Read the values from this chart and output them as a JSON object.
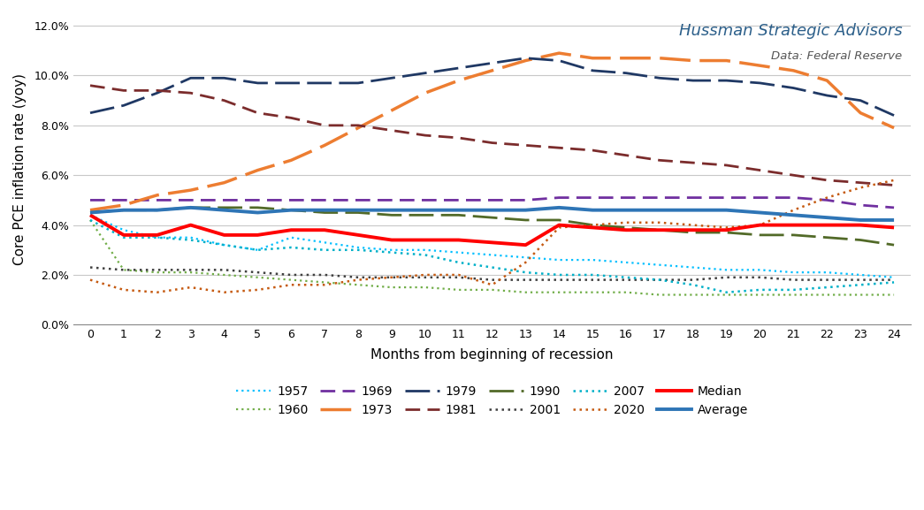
{
  "xlabel": "Months from beginning of recession",
  "ylabel": "Core PCE inflation rate (yoy)",
  "watermark_line1": "Hussman Strategic Advisors",
  "watermark_line2": "Data: Federal Reserve",
  "xlim": [
    -0.5,
    24.5
  ],
  "ylim": [
    0.0,
    0.125
  ],
  "yticks": [
    0.0,
    0.02,
    0.04,
    0.06,
    0.08,
    0.1,
    0.12
  ],
  "ytick_labels": [
    "0.0%",
    "2.0%",
    "4.0%",
    "6.0%",
    "8.0%",
    "10.0%",
    "12.0%"
  ],
  "series": {
    "1957": {
      "values": [
        0.044,
        0.038,
        0.035,
        0.035,
        0.032,
        0.03,
        0.035,
        0.033,
        0.031,
        0.03,
        0.03,
        0.029,
        0.028,
        0.027,
        0.026,
        0.026,
        0.025,
        0.024,
        0.023,
        0.022,
        0.022,
        0.021,
        0.021,
        0.02,
        0.019
      ],
      "color": "#00bfff",
      "ls_type": "dotted",
      "linewidth": 1.6
    },
    "1960": {
      "values": [
        0.042,
        0.022,
        0.021,
        0.021,
        0.02,
        0.019,
        0.018,
        0.017,
        0.016,
        0.015,
        0.015,
        0.014,
        0.014,
        0.013,
        0.013,
        0.013,
        0.013,
        0.012,
        0.012,
        0.012,
        0.012,
        0.012,
        0.012,
        0.012,
        0.012
      ],
      "color": "#70ad47",
      "ls_type": "dotted",
      "linewidth": 1.6
    },
    "1969": {
      "values": [
        0.05,
        0.05,
        0.05,
        0.05,
        0.05,
        0.05,
        0.05,
        0.05,
        0.05,
        0.05,
        0.05,
        0.05,
        0.05,
        0.05,
        0.051,
        0.051,
        0.051,
        0.051,
        0.051,
        0.051,
        0.051,
        0.051,
        0.05,
        0.048,
        0.047
      ],
      "color": "#7030a0",
      "ls_type": "dashed_short",
      "linewidth": 2.0
    },
    "1973": {
      "values": [
        0.046,
        0.048,
        0.052,
        0.054,
        0.057,
        0.062,
        0.066,
        0.072,
        0.079,
        0.086,
        0.093,
        0.098,
        0.102,
        0.106,
        0.109,
        0.107,
        0.107,
        0.107,
        0.106,
        0.106,
        0.104,
        0.102,
        0.098,
        0.085,
        0.079
      ],
      "color": "#ed7d31",
      "ls_type": "dashed_long",
      "linewidth": 2.5
    },
    "1979": {
      "values": [
        0.085,
        0.088,
        0.093,
        0.099,
        0.099,
        0.097,
        0.097,
        0.097,
        0.097,
        0.099,
        0.101,
        0.103,
        0.105,
        0.107,
        0.106,
        0.102,
        0.101,
        0.099,
        0.098,
        0.098,
        0.097,
        0.095,
        0.092,
        0.09,
        0.084
      ],
      "color": "#1f3864",
      "ls_type": "dashed_long",
      "linewidth": 2.0
    },
    "1981": {
      "values": [
        0.096,
        0.094,
        0.094,
        0.093,
        0.09,
        0.085,
        0.083,
        0.08,
        0.08,
        0.078,
        0.076,
        0.075,
        0.073,
        0.072,
        0.071,
        0.07,
        0.068,
        0.066,
        0.065,
        0.064,
        0.062,
        0.06,
        0.058,
        0.057,
        0.056
      ],
      "color": "#7b2c2c",
      "ls_type": "dashed_short",
      "linewidth": 2.0
    },
    "1990": {
      "values": [
        0.045,
        0.046,
        0.046,
        0.047,
        0.047,
        0.047,
        0.046,
        0.045,
        0.045,
        0.044,
        0.044,
        0.044,
        0.043,
        0.042,
        0.042,
        0.04,
        0.039,
        0.038,
        0.037,
        0.037,
        0.036,
        0.036,
        0.035,
        0.034,
        0.032
      ],
      "color": "#526a28",
      "ls_type": "dashed_long",
      "linewidth": 2.0
    },
    "2001": {
      "values": [
        0.023,
        0.022,
        0.022,
        0.022,
        0.022,
        0.021,
        0.02,
        0.02,
        0.019,
        0.019,
        0.019,
        0.019,
        0.018,
        0.018,
        0.018,
        0.018,
        0.018,
        0.018,
        0.018,
        0.019,
        0.019,
        0.018,
        0.018,
        0.018,
        0.018
      ],
      "color": "#404040",
      "ls_type": "dotted",
      "linewidth": 1.8
    },
    "2007": {
      "values": [
        0.042,
        0.035,
        0.035,
        0.034,
        0.032,
        0.03,
        0.031,
        0.03,
        0.03,
        0.029,
        0.028,
        0.025,
        0.023,
        0.021,
        0.02,
        0.02,
        0.019,
        0.018,
        0.016,
        0.013,
        0.014,
        0.014,
        0.015,
        0.016,
        0.017
      ],
      "color": "#00b0c8",
      "ls_type": "dotted",
      "linewidth": 1.8
    },
    "2020": {
      "values": [
        0.018,
        0.014,
        0.013,
        0.015,
        0.013,
        0.014,
        0.016,
        0.016,
        0.018,
        0.019,
        0.02,
        0.02,
        0.016,
        0.025,
        0.039,
        0.04,
        0.041,
        0.041,
        0.04,
        0.039,
        0.04,
        0.046,
        0.051,
        0.055,
        0.058
      ],
      "color": "#c55a11",
      "ls_type": "dotted",
      "linewidth": 1.8
    },
    "Median": {
      "values": [
        0.044,
        0.036,
        0.036,
        0.04,
        0.036,
        0.036,
        0.038,
        0.038,
        0.036,
        0.034,
        0.034,
        0.034,
        0.033,
        0.032,
        0.04,
        0.039,
        0.038,
        0.038,
        0.038,
        0.038,
        0.04,
        0.04,
        0.04,
        0.04,
        0.039
      ],
      "color": "#ff0000",
      "ls_type": "solid",
      "linewidth": 2.8
    },
    "Average": {
      "values": [
        0.045,
        0.046,
        0.046,
        0.047,
        0.046,
        0.045,
        0.046,
        0.046,
        0.046,
        0.046,
        0.046,
        0.046,
        0.046,
        0.046,
        0.047,
        0.046,
        0.046,
        0.046,
        0.046,
        0.046,
        0.045,
        0.044,
        0.043,
        0.042,
        0.042
      ],
      "color": "#2e75b6",
      "ls_type": "solid",
      "linewidth": 2.8
    }
  },
  "legend_row1": [
    "1957",
    "1960",
    "1969",
    "1973",
    "1979",
    "1981"
  ],
  "legend_row2": [
    "1990",
    "2001",
    "2007",
    "2020",
    "Median",
    "Average"
  ],
  "background_color": "#ffffff"
}
